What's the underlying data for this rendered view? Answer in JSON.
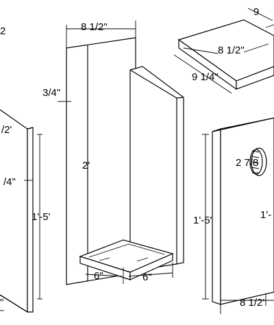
{
  "labels": {
    "back_width": "8 1/2\"",
    "thickness": "3/4\"",
    "back_height": "2'",
    "floor_left": "6\"",
    "floor_right": "6\"",
    "roof_top": "9",
    "roof_width": "8 1/2\"",
    "roof_depth": "9 1/4\"",
    "hole_dia": "2 7/8",
    "front_height": "1'-5'",
    "front_height_cut": "1'-",
    "front_width": "8 1/2'",
    "left_frag_top": "2",
    "left_frag_roof": "/2'",
    "left_frag_thick": "/4\"",
    "left_height": "1'-5'",
    "left_bottom": "\""
  }
}
